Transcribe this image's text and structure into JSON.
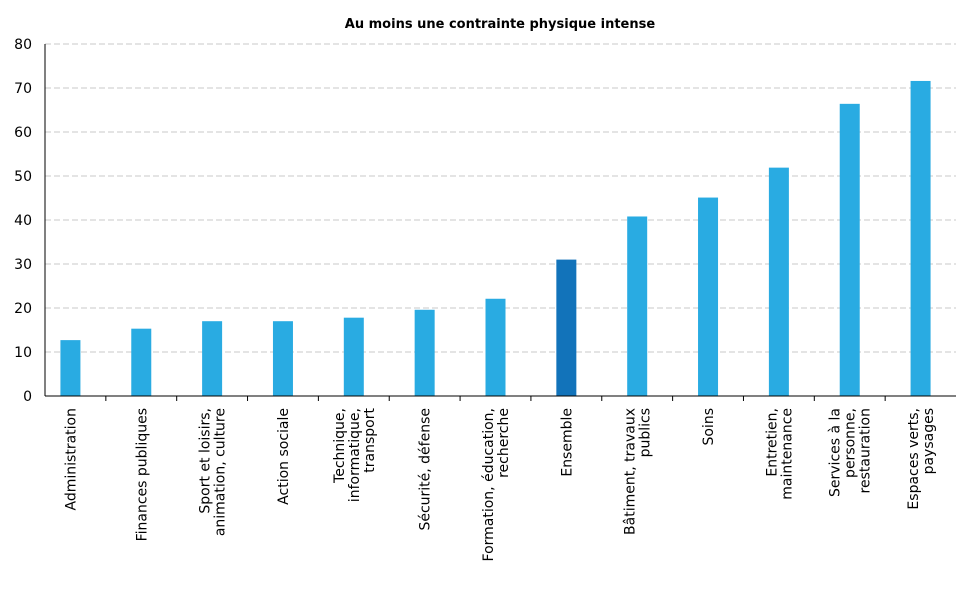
{
  "chart_data": {
    "type": "bar",
    "title": "Au moins une contrainte physique intense",
    "categories": [
      "Administration",
      "Finances publiques",
      "Sport et loisirs,\nanimation, culture",
      "Action sociale",
      "Technique,\ninformatique,\ntransport",
      "Sécurité, défense",
      "Formation, éducation,\nrecherche",
      "Ensemble",
      "Bâtiment, travaux\npublics",
      "Soins",
      "Entretien,\nmaintenance",
      "Services à la\npersonne,\nrestauration",
      "Espaces verts,\npaysages"
    ],
    "values": [
      12.7,
      15.3,
      17,
      17,
      17.8,
      19.6,
      22.1,
      31,
      40.8,
      45.1,
      51.9,
      66.4,
      71.6
    ],
    "colors": [
      "#29abe2",
      "#29abe2",
      "#29abe2",
      "#29abe2",
      "#29abe2",
      "#29abe2",
      "#29abe2",
      "#1273ba",
      "#29abe2",
      "#29abe2",
      "#29abe2",
      "#29abe2",
      "#29abe2"
    ],
    "ylim": [
      0,
      80
    ],
    "yticks": [
      0,
      10,
      20,
      30,
      40,
      50,
      60,
      70,
      80
    ],
    "grid": true
  }
}
